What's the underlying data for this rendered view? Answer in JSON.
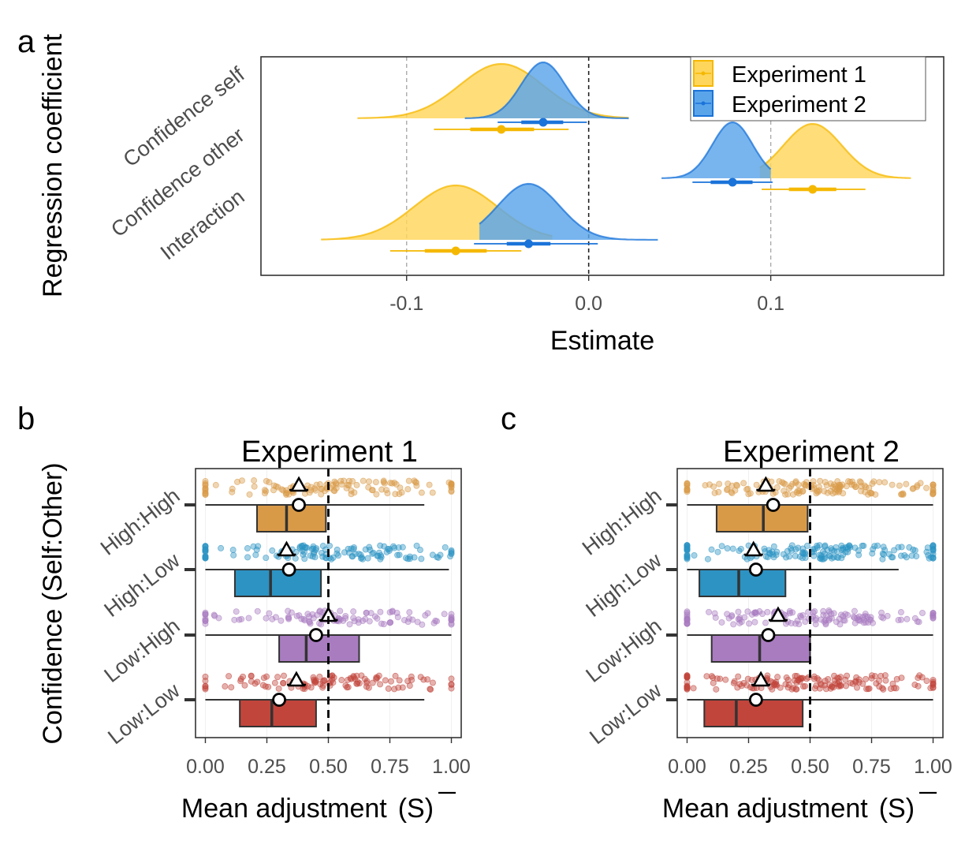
{
  "colors": {
    "exp1": "#f5b800",
    "exp1_fill": "#ffd65c",
    "exp2": "#1a73d9",
    "exp2_fill": "#5aa5ea",
    "high_high": "#d99a48",
    "high_low": "#2c93c3",
    "low_high": "#a97cc0",
    "low_low": "#c2453c"
  },
  "chart_data": [
    {
      "id": "a",
      "panel_label": "a",
      "type": "density-interval",
      "xlabel": "Estimate",
      "ylabel": "Regression coefficient",
      "xlim": [
        -0.18,
        0.195
      ],
      "x_ticks": [
        -0.1,
        0.0,
        0.1
      ],
      "x_tick_labels": [
        "-0.1",
        "0.0",
        "0.1"
      ],
      "vlines": [
        -0.1,
        0.0,
        0.1
      ],
      "categories": [
        "Confidence self",
        "Confidence other",
        "Interaction"
      ],
      "legend": {
        "position": "top-right",
        "entries": [
          "Experiment 1",
          "Experiment 2"
        ]
      },
      "series": [
        {
          "name": "Experiment 1",
          "points": [
            {
              "category": "Confidence self",
              "median": -0.048,
              "sd": 0.023,
              "range": [
                -0.127,
                0.022
              ],
              "ci66": [
                -0.065,
                -0.03
              ],
              "ci95": [
                -0.085,
                -0.011
              ]
            },
            {
              "category": "Confidence other",
              "median": 0.123,
              "sd": 0.016,
              "range": [
                0.094,
                0.177
              ],
              "ci66": [
                0.11,
                0.136
              ],
              "ci95": [
                0.095,
                0.152
              ]
            },
            {
              "category": "Interaction",
              "median": -0.073,
              "sd": 0.023,
              "range": [
                -0.147,
                -0.02
              ],
              "ci66": [
                -0.09,
                -0.056
              ],
              "ci95": [
                -0.109,
                -0.037
              ]
            }
          ]
        },
        {
          "name": "Experiment 2",
          "points": [
            {
              "category": "Confidence self",
              "median": -0.025,
              "sd": 0.012,
              "range": [
                -0.068,
                0.022
              ],
              "ci66": [
                -0.037,
                -0.014
              ],
              "ci95": [
                -0.05,
                -0.001
              ]
            },
            {
              "category": "Confidence other",
              "median": 0.079,
              "sd": 0.011,
              "range": [
                0.04,
                0.1
              ],
              "ci66": [
                0.067,
                0.09
              ],
              "ci95": [
                0.057,
                0.101
              ]
            },
            {
              "category": "Interaction",
              "median": -0.033,
              "sd": 0.017,
              "range": [
                -0.06,
                0.038
              ],
              "ci66": [
                -0.045,
                -0.021
              ],
              "ci95": [
                -0.063,
                0.005
              ]
            }
          ]
        }
      ]
    },
    {
      "id": "b",
      "panel_label": "b",
      "type": "box-jitter",
      "title": "Experiment 1",
      "xlabel": "Mean adjustment",
      "ylabel": "Confidence (Self:Other)",
      "xlim": [
        -0.04,
        1.04
      ],
      "x_ticks": [
        0,
        0.25,
        0.5,
        0.75,
        1
      ],
      "x_tick_labels": [
        "0.00",
        "0.25",
        "0.50",
        "0.75",
        "1.00"
      ],
      "reference_line": 0.5,
      "categories": [
        "High:High",
        "High:Low",
        "Low:High",
        "Low:Low"
      ],
      "series": [
        {
          "name": "High:High",
          "box": {
            "q1": 0.21,
            "median": 0.33,
            "q3": 0.49,
            "min": 0.0,
            "max": 0.89
          },
          "triangle": 0.38,
          "circle": 0.38,
          "n": 120,
          "seed": 11
        },
        {
          "name": "High:Low",
          "box": {
            "q1": 0.12,
            "median": 0.265,
            "q3": 0.47,
            "min": 0.0,
            "max": 0.99
          },
          "triangle": 0.33,
          "circle": 0.34,
          "n": 130,
          "seed": 23
        },
        {
          "name": "Low:High",
          "box": {
            "q1": 0.3,
            "median": 0.41,
            "q3": 0.625,
            "min": 0.0,
            "max": 1.0
          },
          "triangle": 0.5,
          "circle": 0.45,
          "n": 110,
          "seed": 37
        },
        {
          "name": "Low:Low",
          "box": {
            "q1": 0.14,
            "median": 0.27,
            "q3": 0.45,
            "min": 0.0,
            "max": 0.89
          },
          "triangle": 0.37,
          "circle": 0.3,
          "n": 115,
          "seed": 41
        }
      ]
    },
    {
      "id": "c",
      "panel_label": "c",
      "type": "box-jitter",
      "title": "Experiment 2",
      "xlabel": "Mean adjustment",
      "ylabel": "",
      "xlim": [
        -0.04,
        1.04
      ],
      "x_ticks": [
        0,
        0.25,
        0.5,
        0.75,
        1
      ],
      "x_tick_labels": [
        "0.00",
        "0.25",
        "0.50",
        "0.75",
        "1.00"
      ],
      "reference_line": 0.5,
      "categories": [
        "High:High",
        "High:Low",
        "Low:High",
        "Low:Low"
      ],
      "series": [
        {
          "name": "High:High",
          "box": {
            "q1": 0.12,
            "median": 0.31,
            "q3": 0.49,
            "min": 0.0,
            "max": 1.0
          },
          "triangle": 0.32,
          "circle": 0.35,
          "n": 150,
          "seed": 53
        },
        {
          "name": "High:Low",
          "box": {
            "q1": 0.05,
            "median": 0.21,
            "q3": 0.4,
            "min": 0.0,
            "max": 0.86
          },
          "triangle": 0.27,
          "circle": 0.28,
          "n": 160,
          "seed": 67
        },
        {
          "name": "Low:High",
          "box": {
            "q1": 0.1,
            "median": 0.295,
            "q3": 0.5,
            "min": 0.0,
            "max": 1.0
          },
          "triangle": 0.37,
          "circle": 0.33,
          "n": 140,
          "seed": 79
        },
        {
          "name": "Low:Low",
          "box": {
            "q1": 0.07,
            "median": 0.2,
            "q3": 0.47,
            "min": 0.0,
            "max": 1.0
          },
          "triangle": 0.3,
          "circle": 0.28,
          "n": 160,
          "seed": 83
        }
      ]
    }
  ]
}
